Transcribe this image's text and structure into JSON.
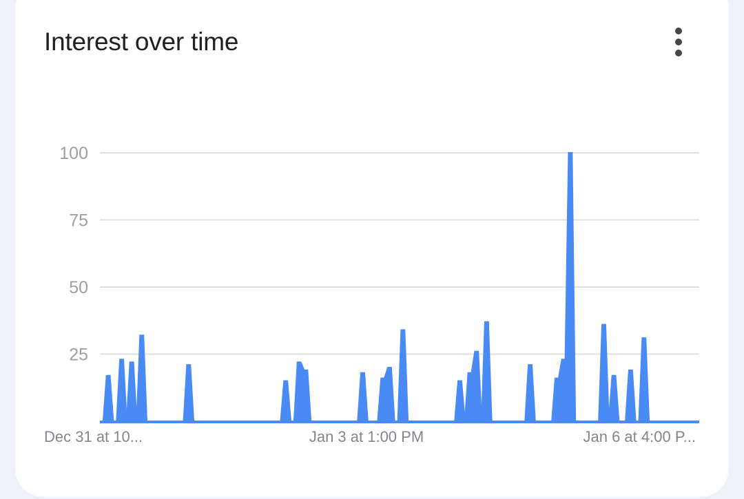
{
  "header": {
    "title": "Interest over time",
    "menu_icon": "more-vert-icon"
  },
  "colors": {
    "series": "#4a8af4",
    "grid": "#e0e0e0",
    "axis_text": "#9aa0a6"
  },
  "chart_data": {
    "type": "area",
    "title": "Interest over time",
    "xlabel": "",
    "ylabel": "",
    "ylim": [
      0,
      100
    ],
    "yticks": [
      25,
      50,
      75,
      100
    ],
    "xtick_labels": [
      "Dec 31 at 10...",
      "Jan 3 at 1:00 PM",
      "Jan 6 at 4:00 P..."
    ],
    "grid": true,
    "legend": "none",
    "values": [
      0,
      0,
      17,
      17,
      0,
      0,
      23,
      23,
      0,
      22,
      22,
      0,
      32,
      32,
      0,
      0,
      0,
      0,
      0,
      0,
      0,
      0,
      0,
      0,
      0,
      0,
      21,
      21,
      0,
      0,
      0,
      0,
      0,
      0,
      0,
      0,
      0,
      0,
      0,
      0,
      0,
      0,
      0,
      0,
      0,
      0,
      0,
      0,
      0,
      0,
      0,
      0,
      0,
      0,
      0,
      15,
      15,
      0,
      0,
      22,
      22,
      19,
      19,
      0,
      0,
      0,
      0,
      0,
      0,
      0,
      0,
      0,
      0,
      0,
      0,
      0,
      0,
      0,
      18,
      18,
      0,
      0,
      0,
      0,
      16,
      16,
      20,
      20,
      0,
      0,
      34,
      34,
      0,
      0,
      0,
      0,
      0,
      0,
      0,
      0,
      0,
      0,
      0,
      0,
      0,
      0,
      0,
      15,
      15,
      0,
      18,
      18,
      26,
      26,
      0,
      37,
      37,
      0,
      0,
      0,
      0,
      0,
      0,
      0,
      0,
      0,
      0,
      0,
      21,
      21,
      0,
      0,
      0,
      0,
      0,
      0,
      16,
      16,
      23,
      23,
      100,
      100,
      0,
      0,
      0,
      0,
      0,
      0,
      0,
      0,
      36,
      36,
      0,
      17,
      17,
      0,
      0,
      0,
      19,
      19,
      0,
      0,
      31,
      31,
      0,
      0,
      0,
      0,
      0,
      0,
      0,
      0,
      0,
      0,
      0,
      0,
      0,
      0,
      0,
      0
    ]
  }
}
